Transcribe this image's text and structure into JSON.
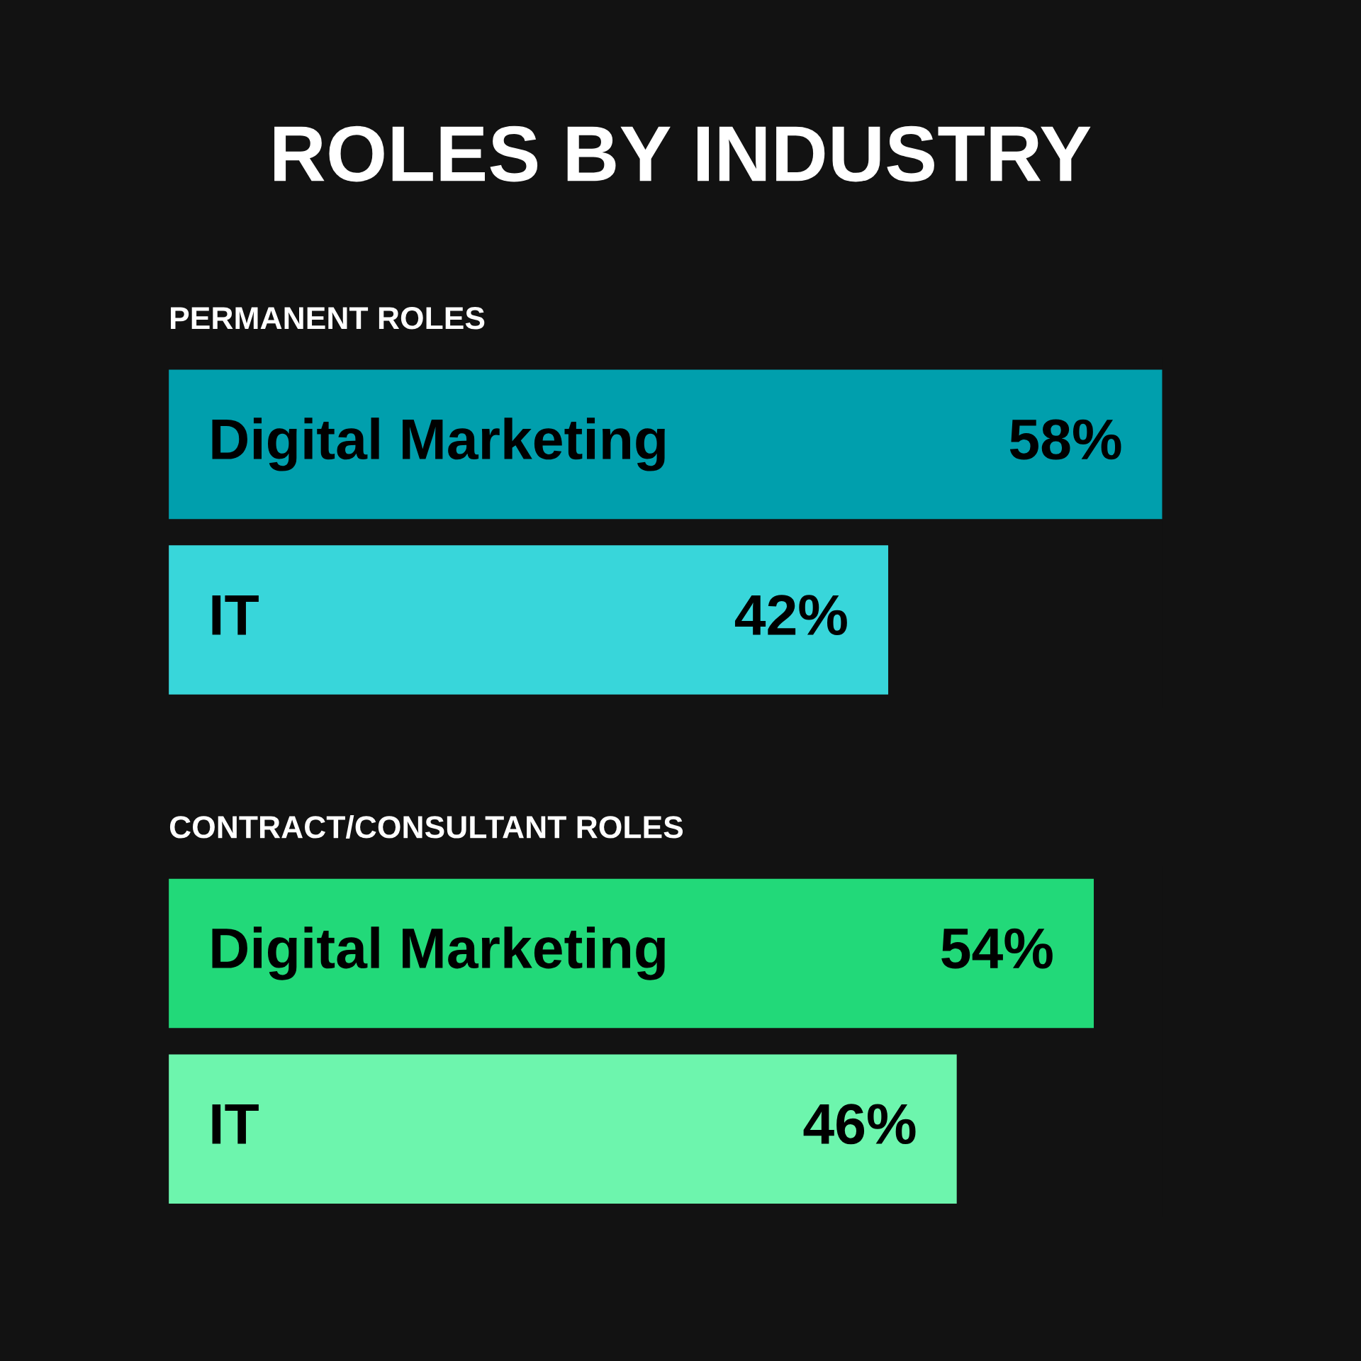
{
  "chart_data": [
    {
      "type": "bar",
      "orientation": "horizontal",
      "title": "ROLES BY INDUSTRY",
      "subtitle": "PERMANENT ROLES",
      "categories": [
        "Digital Marketing",
        "IT"
      ],
      "values": [
        58,
        42
      ],
      "colors": [
        "#009fad",
        "#38d6da"
      ],
      "value_labels": [
        "58%",
        "42%"
      ]
    },
    {
      "type": "bar",
      "orientation": "horizontal",
      "subtitle": "CONTRACT/CONSULTANT ROLES",
      "categories": [
        "Digital Marketing",
        "IT"
      ],
      "values": [
        54,
        46
      ],
      "colors": [
        "#22d979",
        "#6df5ad"
      ],
      "value_labels": [
        "54%",
        "46%"
      ]
    }
  ]
}
